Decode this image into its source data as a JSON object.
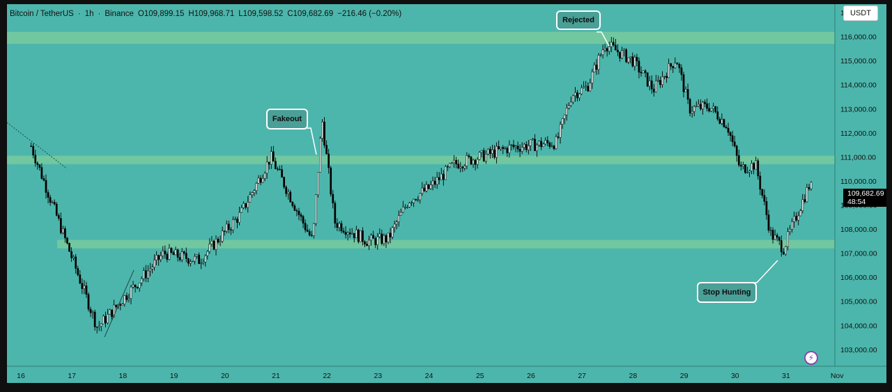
{
  "header": {
    "symbol": "Bitcoin / TetherUS",
    "interval": "1h",
    "exchange": "Binance",
    "open": "O109,899.15",
    "high": "H109,968.71",
    "low": "L109,598.52",
    "close": "C109,682.69",
    "change": "−216.46 (−0.20%)"
  },
  "currency_button": "USDT",
  "last_price": {
    "price": "109,682.69",
    "countdown": "48:54"
  },
  "callouts": {
    "rejected": "Rejected",
    "fakeout": "Fakeout",
    "stop_hunting": "Stop Hunting"
  },
  "colors": {
    "background": "#4db6ac",
    "zone": "#71c7a0",
    "candle": "#000000",
    "last_price_tag": "#000000"
  },
  "chart_data": {
    "type": "candlestick",
    "title": "",
    "xlabel": "",
    "ylabel": "",
    "x_ticks": [
      "16",
      "17",
      "18",
      "19",
      "20",
      "21",
      "22",
      "23",
      "24",
      "25",
      "26",
      "27",
      "28",
      "29",
      "30",
      "31",
      "Nov"
    ],
    "y_ticks": [
      "103,000.00",
      "104,000.00",
      "105,000.00",
      "106,000.00",
      "107,000.00",
      "108,000.00",
      "109,000.00",
      "110,000.00",
      "111,000.00",
      "112,000.00",
      "113,000.00",
      "114,000.00",
      "115,000.00",
      "116,000.00",
      "117,000.00"
    ],
    "ylim": [
      102300,
      117350
    ],
    "grid": false,
    "zones": [
      {
        "low": 115700,
        "high": 116200
      },
      {
        "low": 110700,
        "high": 111050
      },
      {
        "low": 107200,
        "high": 107550
      }
    ],
    "trend_path": [
      {
        "x": 16.2,
        "y": 111450
      },
      {
        "x": 17.5,
        "y": 103900
      },
      {
        "x": 18.8,
        "y": 107000
      },
      {
        "x": 19.5,
        "y": 106700
      },
      {
        "x": 20.3,
        "y": 108600
      },
      {
        "x": 20.9,
        "y": 111000
      },
      {
        "x": 21.5,
        "y": 108400
      },
      {
        "x": 21.72,
        "y": 107500
      },
      {
        "x": 21.9,
        "y": 112600
      },
      {
        "x": 22.15,
        "y": 108300
      },
      {
        "x": 22.8,
        "y": 107500
      },
      {
        "x": 23.2,
        "y": 107600
      },
      {
        "x": 23.6,
        "y": 109200
      },
      {
        "x": 24.0,
        "y": 109700
      },
      {
        "x": 24.5,
        "y": 110700
      },
      {
        "x": 25.0,
        "y": 111000
      },
      {
        "x": 25.6,
        "y": 111400
      },
      {
        "x": 26.5,
        "y": 111600
      },
      {
        "x": 26.8,
        "y": 113600
      },
      {
        "x": 27.1,
        "y": 113900
      },
      {
        "x": 27.45,
        "y": 115700
      },
      {
        "x": 28.0,
        "y": 115000
      },
      {
        "x": 28.4,
        "y": 113800
      },
      {
        "x": 28.85,
        "y": 115100
      },
      {
        "x": 29.1,
        "y": 113000
      },
      {
        "x": 29.5,
        "y": 113100
      },
      {
        "x": 29.85,
        "y": 112300
      },
      {
        "x": 30.1,
        "y": 110500
      },
      {
        "x": 30.4,
        "y": 110700
      },
      {
        "x": 30.7,
        "y": 107800
      },
      {
        "x": 30.95,
        "y": 107200
      },
      {
        "x": 31.25,
        "y": 108800
      },
      {
        "x": 31.45,
        "y": 109800
      },
      {
        "x": 31.52,
        "y": 109682
      }
    ]
  }
}
